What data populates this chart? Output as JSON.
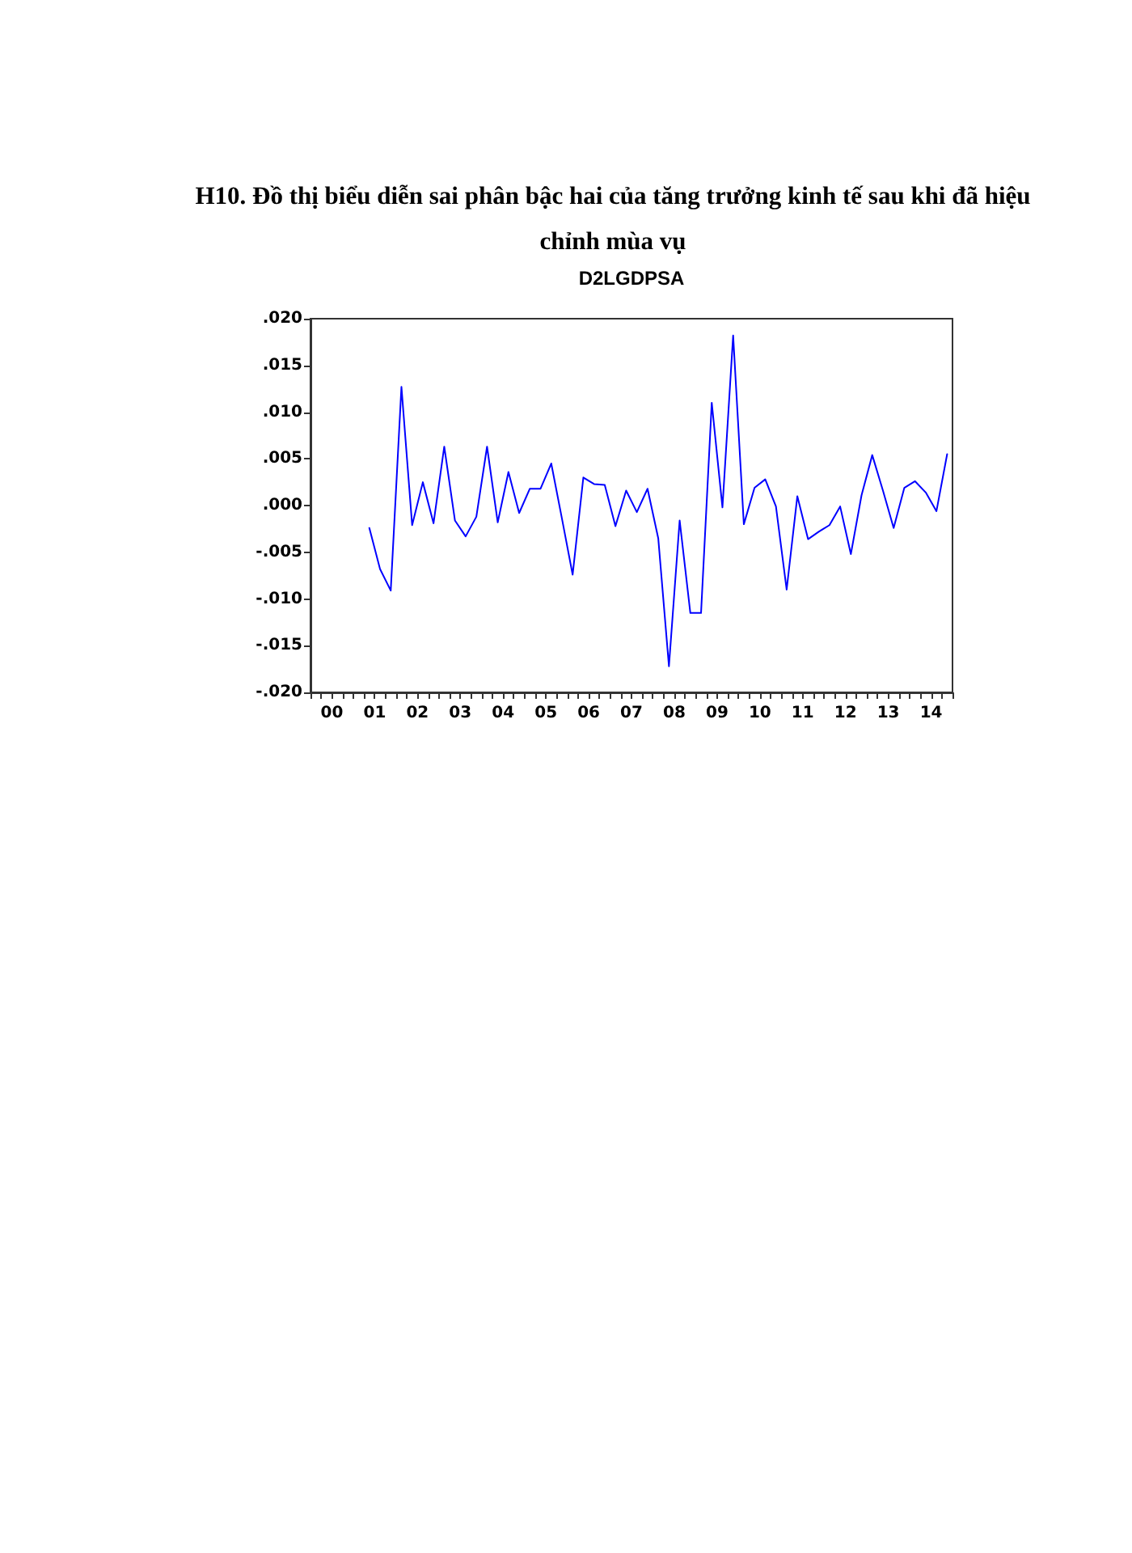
{
  "chart_data": {
    "type": "line",
    "title": "D2LGDPSA",
    "annotations": [
      "H10. Đồ thị biểu diễn sai phân bậc hai của tăng trưởng kinh tế sau khi đã hiệu chỉnh mùa vụ"
    ],
    "x": [
      0.875,
      1.125,
      1.375,
      1.625,
      1.875,
      2.125,
      2.375,
      2.625,
      2.875,
      3.125,
      3.375,
      3.625,
      3.875,
      4.125,
      4.375,
      4.625,
      4.875,
      5.125,
      5.375,
      5.625,
      5.875,
      6.125,
      6.375,
      6.625,
      6.875,
      7.125,
      7.375,
      7.625,
      7.875,
      8.125,
      8.375,
      8.625,
      8.875,
      9.125,
      9.375,
      9.625,
      9.875,
      10.125,
      10.375,
      10.625,
      10.875,
      11.125,
      11.375,
      11.625,
      11.875,
      12.125,
      12.375,
      12.625,
      12.875,
      13.125,
      13.375,
      13.625,
      13.875,
      14.125,
      14.375
    ],
    "series": [
      {
        "color": "#0000ff",
        "values": [
          -0.0024,
          -0.0068,
          -0.0091,
          0.0127,
          -0.0021,
          0.0025,
          -0.0019,
          0.0063,
          -0.0016,
          -0.0033,
          -0.0012,
          0.0063,
          -0.0018,
          0.0036,
          -0.0008,
          0.0018,
          0.0018,
          0.0045,
          -0.0014,
          -0.0074,
          0.003,
          0.0023,
          0.0022,
          -0.0022,
          0.0016,
          -0.0007,
          0.0018,
          -0.0035,
          -0.0172,
          -0.0016,
          -0.0115,
          -0.0115,
          0.011,
          -0.0002,
          0.0182,
          -0.002,
          0.0019,
          0.0028,
          -0.0001,
          -0.009,
          0.001,
          -0.0036,
          -0.0028,
          -0.0021,
          -0.0001,
          -0.0052,
          0.0011,
          0.0054,
          0.0016,
          -0.0024,
          0.0019,
          0.0026,
          0.0014,
          -0.0006,
          0.0055
        ]
      }
    ],
    "xlim": [
      -0.5,
      14.5
    ],
    "xticks": [
      {
        "value": -0.5,
        "label": null
      },
      {
        "value": -0.25,
        "label": null
      },
      {
        "value": 0,
        "label": "00"
      },
      {
        "value": 0.25,
        "label": null
      },
      {
        "value": 0.5,
        "label": null
      },
      {
        "value": 0.75,
        "label": null
      },
      {
        "value": 1,
        "label": "01"
      },
      {
        "value": 1.25,
        "label": null
      },
      {
        "value": 1.5,
        "label": null
      },
      {
        "value": 1.75,
        "label": null
      },
      {
        "value": 2,
        "label": "02"
      },
      {
        "value": 2.25,
        "label": null
      },
      {
        "value": 2.5,
        "label": null
      },
      {
        "value": 2.75,
        "label": null
      },
      {
        "value": 3,
        "label": "03"
      },
      {
        "value": 3.25,
        "label": null
      },
      {
        "value": 3.5,
        "label": null
      },
      {
        "value": 3.75,
        "label": null
      },
      {
        "value": 4,
        "label": "04"
      },
      {
        "value": 4.25,
        "label": null
      },
      {
        "value": 4.5,
        "label": null
      },
      {
        "value": 4.75,
        "label": null
      },
      {
        "value": 5,
        "label": "05"
      },
      {
        "value": 5.25,
        "label": null
      },
      {
        "value": 5.5,
        "label": null
      },
      {
        "value": 5.75,
        "label": null
      },
      {
        "value": 6,
        "label": "06"
      },
      {
        "value": 6.25,
        "label": null
      },
      {
        "value": 6.5,
        "label": null
      },
      {
        "value": 6.75,
        "label": null
      },
      {
        "value": 7,
        "label": "07"
      },
      {
        "value": 7.25,
        "label": null
      },
      {
        "value": 7.5,
        "label": null
      },
      {
        "value": 7.75,
        "label": null
      },
      {
        "value": 8,
        "label": "08"
      },
      {
        "value": 8.25,
        "label": null
      },
      {
        "value": 8.5,
        "label": null
      },
      {
        "value": 8.75,
        "label": null
      },
      {
        "value": 9,
        "label": "09"
      },
      {
        "value": 9.25,
        "label": null
      },
      {
        "value": 9.5,
        "label": null
      },
      {
        "value": 9.75,
        "label": null
      },
      {
        "value": 10,
        "label": "10"
      },
      {
        "value": 10.25,
        "label": null
      },
      {
        "value": 10.5,
        "label": null
      },
      {
        "value": 10.75,
        "label": null
      },
      {
        "value": 11,
        "label": "11"
      },
      {
        "value": 11.25,
        "label": null
      },
      {
        "value": 11.5,
        "label": null
      },
      {
        "value": 11.75,
        "label": null
      },
      {
        "value": 12,
        "label": "12"
      },
      {
        "value": 12.25,
        "label": null
      },
      {
        "value": 12.5,
        "label": null
      },
      {
        "value": 12.75,
        "label": null
      },
      {
        "value": 13,
        "label": "13"
      },
      {
        "value": 13.25,
        "label": null
      },
      {
        "value": 13.5,
        "label": null
      },
      {
        "value": 13.75,
        "label": null
      },
      {
        "value": 14,
        "label": "14"
      },
      {
        "value": 14.25,
        "label": null
      },
      {
        "value": 14.5,
        "label": null
      }
    ],
    "ylim": [
      -0.02,
      0.02
    ],
    "yticks": [
      {
        "value": -0.02,
        "label": "-.020"
      },
      {
        "value": -0.015,
        "label": "-.015"
      },
      {
        "value": -0.01,
        "label": "-.010"
      },
      {
        "value": -0.005,
        "label": "-.005"
      },
      {
        "value": 0,
        "label": ".000"
      },
      {
        "value": 0.005,
        "label": ".005"
      },
      {
        "value": 0.01,
        "label": ".010"
      },
      {
        "value": 0.015,
        "label": ".015"
      },
      {
        "value": 0.02,
        "label": ".020"
      }
    ],
    "marker": "none",
    "line_style": "solid",
    "grid": false
  }
}
